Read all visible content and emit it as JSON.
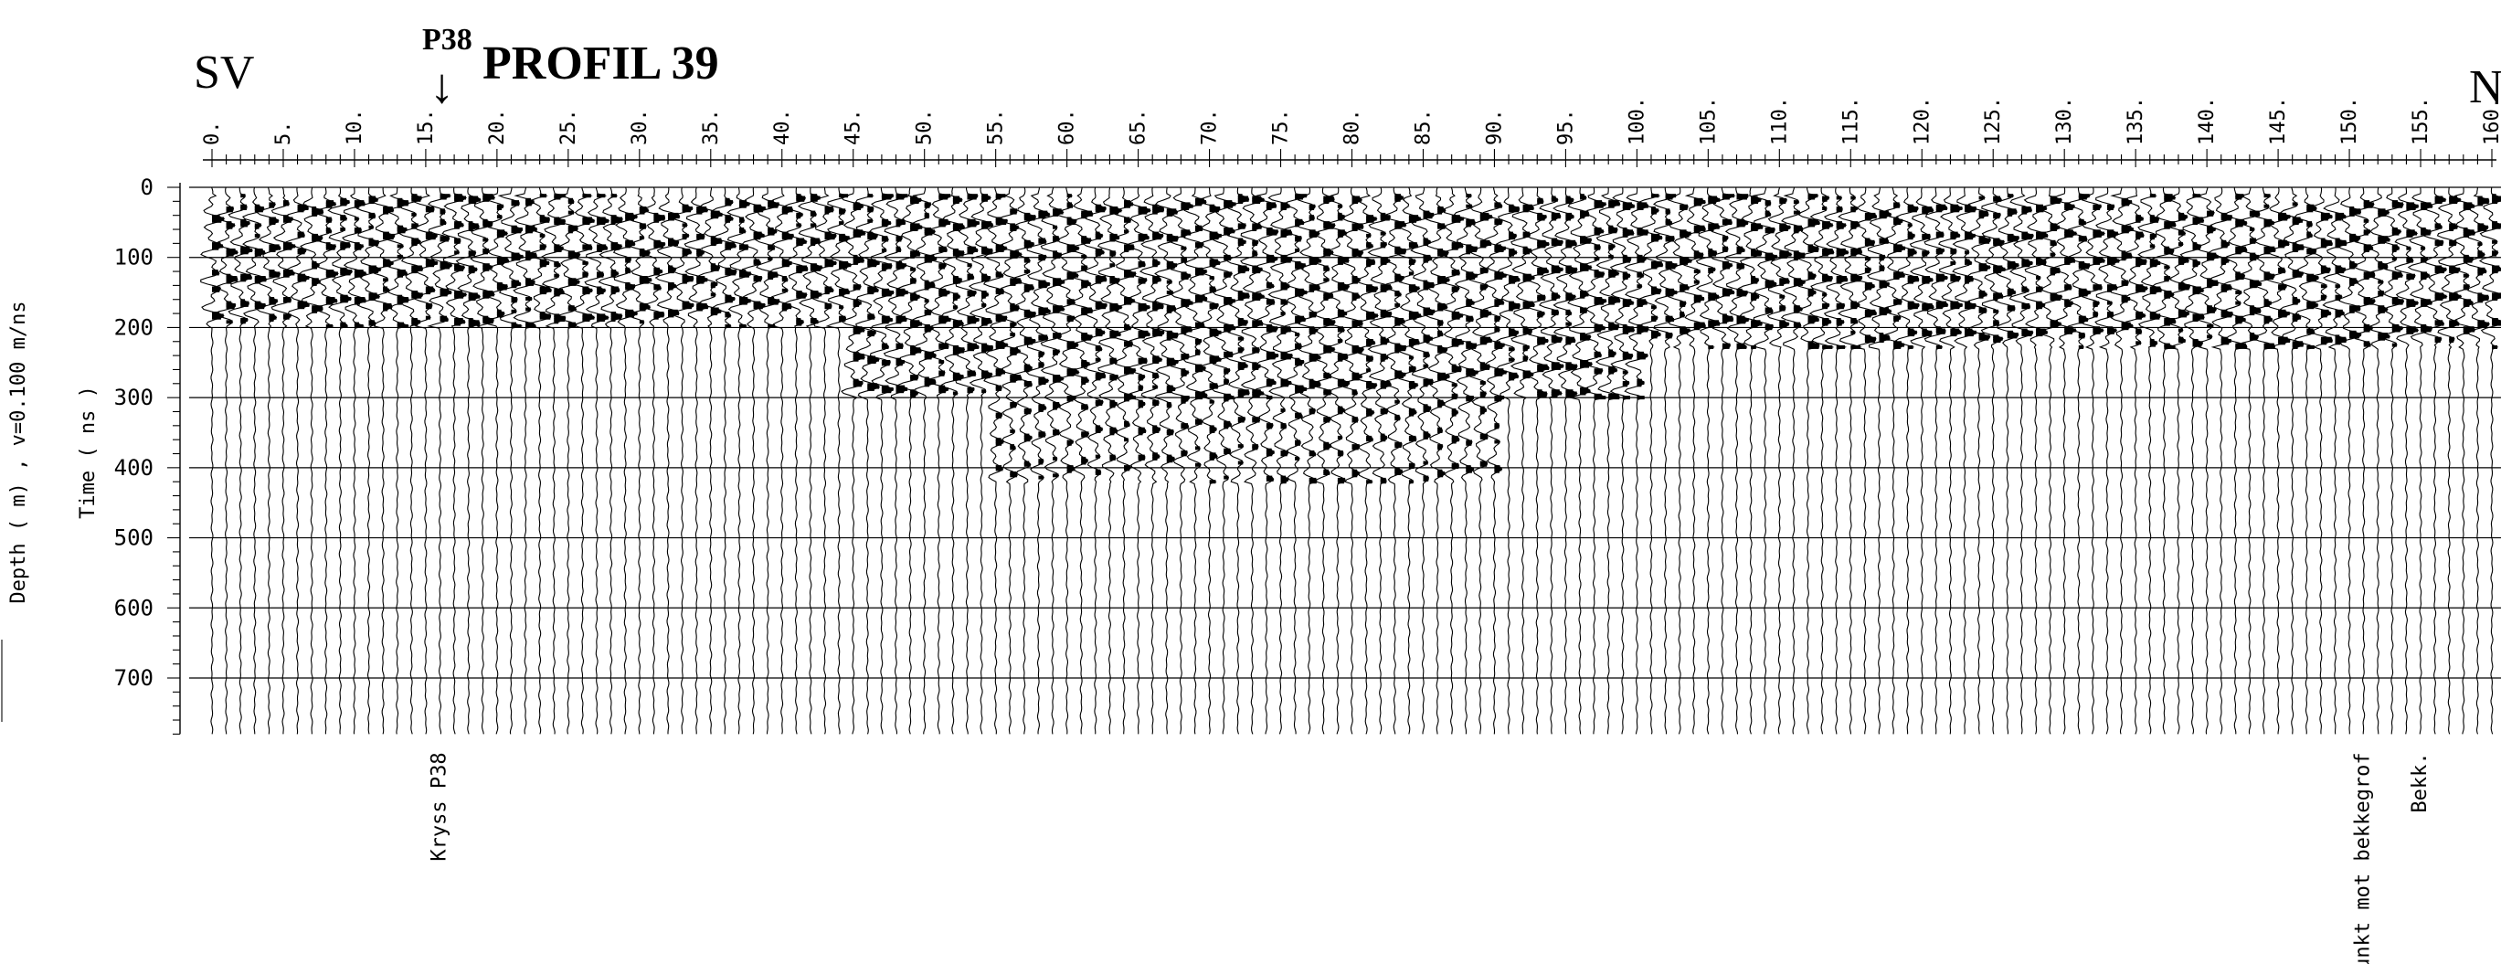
{
  "header": {
    "left_direction": "SV",
    "right_direction": "N",
    "title": "PROFIL  39",
    "crossing_marker": "P38",
    "crossing_arrow": "↓"
  },
  "chart_data": {
    "type": "gpr_radargram",
    "title": "PROFIL  39",
    "xlim": [
      0,
      160
    ],
    "x_tick_values": [
      0,
      5,
      10,
      15,
      20,
      25,
      30,
      35,
      40,
      45,
      50,
      55,
      60,
      65,
      70,
      75,
      80,
      85,
      90,
      95,
      100,
      105,
      110,
      115,
      120,
      125,
      130,
      135,
      140,
      145,
      150,
      155,
      160
    ],
    "x_tick_labels": [
      "0.",
      "5.",
      "10.",
      "15.",
      "20.",
      "25.",
      "30.",
      "35.",
      "40.",
      "45.",
      "50.",
      "55.",
      "60.",
      "65.",
      "70.",
      "75.",
      "80.",
      "85.",
      "90.",
      "95.",
      "100.",
      "105.",
      "110.",
      "115.",
      "120.",
      "125.",
      "130.",
      "135.",
      "140.",
      "145.",
      "150.",
      "155.",
      "160."
    ],
    "ylabel": "Time ( ns )",
    "ylabel2": "Depth ( m) , v=0.100 m/ns",
    "ylim": [
      0,
      780
    ],
    "y_tick_values": [
      0,
      100,
      200,
      300,
      400,
      500,
      600,
      700
    ],
    "y_tick_labels": [
      "0",
      "100",
      "200",
      "300",
      "400",
      "500",
      "600",
      "700"
    ],
    "trace_spacing": 1,
    "grid": "horizontal lines at 100 ns intervals",
    "reflector_zones": [
      {
        "x_start": 0,
        "x_end": 160,
        "t_start": 10,
        "t_end": 40,
        "intensity": "strong"
      },
      {
        "x_start": 0,
        "x_end": 45,
        "t_start": 40,
        "t_end": 200,
        "intensity": "strong"
      },
      {
        "x_start": 45,
        "x_end": 100,
        "t_start": 40,
        "t_end": 300,
        "intensity": "strong"
      },
      {
        "x_start": 55,
        "x_end": 90,
        "t_start": 300,
        "t_end": 420,
        "intensity": "medium"
      },
      {
        "x_start": 100,
        "x_end": 160,
        "t_start": 40,
        "t_end": 230,
        "intensity": "strong"
      }
    ],
    "annotations": [
      {
        "x": 16,
        "text": "Kryss P38"
      },
      {
        "x": 151,
        "text": "Punkt mot bekkegrof"
      },
      {
        "x": 155,
        "text": "Bekk."
      }
    ]
  }
}
